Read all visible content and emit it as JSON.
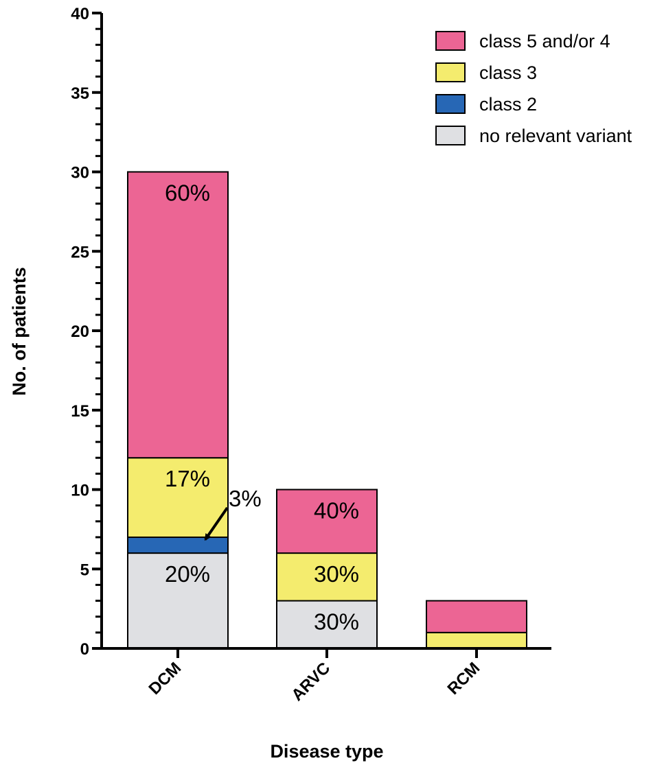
{
  "chart_data": {
    "type": "bar",
    "stacked": true,
    "xlabel": "Disease type",
    "ylabel": "No. of patients",
    "ylim": [
      0,
      40
    ],
    "yticks": [
      "0",
      "5",
      "10",
      "15",
      "20",
      "25",
      "30",
      "35",
      "40"
    ],
    "categories": [
      "DCM",
      "ARVC",
      "RCM"
    ],
    "series": [
      {
        "name": "no relevant variant",
        "color": "#dfe0e3",
        "values": [
          6,
          3,
          0
        ]
      },
      {
        "name": "class 2",
        "color": "#2767b5",
        "values": [
          1,
          0,
          0
        ]
      },
      {
        "name": "class 3",
        "color": "#f4ec6e",
        "values": [
          5,
          3,
          1
        ]
      },
      {
        "name": "class 5 and/or 4",
        "color": "#ec6594",
        "values": [
          18,
          4,
          2
        ]
      }
    ],
    "legend": {
      "position": "top-right",
      "order": [
        "class 5 and/or 4",
        "class 3",
        "class 2",
        "no relevant variant"
      ]
    },
    "annotations": [
      {
        "category": "DCM",
        "series": "class 5 and/or 4",
        "text": "60%"
      },
      {
        "category": "DCM",
        "series": "class 3",
        "text": "17%"
      },
      {
        "category": "DCM",
        "series": "class 2",
        "text": "3%",
        "arrow": true
      },
      {
        "category": "DCM",
        "series": "no relevant variant",
        "text": "20%"
      },
      {
        "category": "ARVC",
        "series": "class 5 and/or 4",
        "text": "40%"
      },
      {
        "category": "ARVC",
        "series": "class 3",
        "text": "30%"
      },
      {
        "category": "ARVC",
        "series": "no relevant variant",
        "text": "30%"
      }
    ],
    "grid": false
  }
}
